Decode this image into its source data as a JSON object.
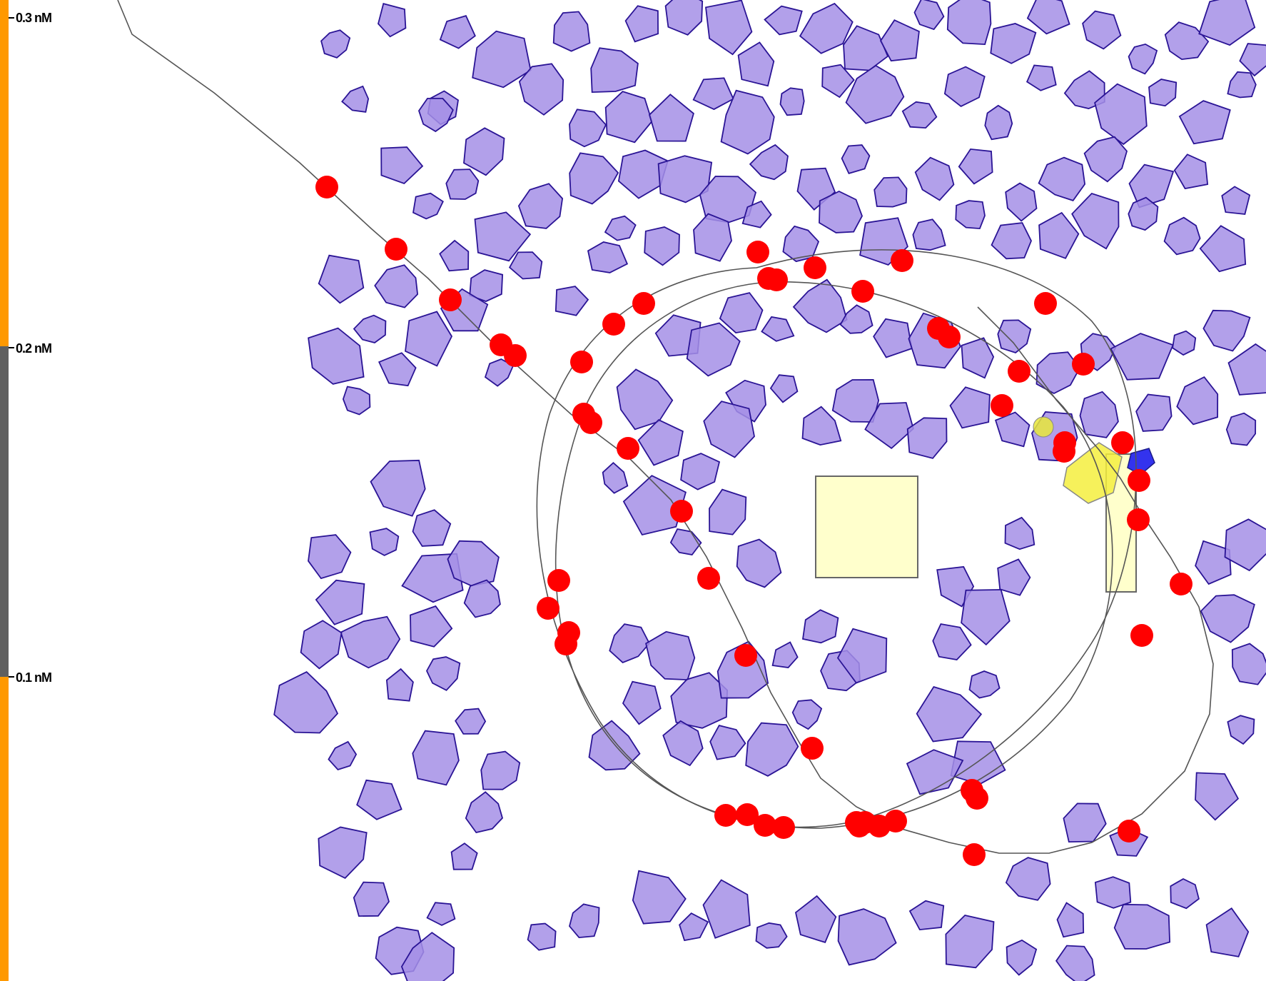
{
  "scale_bar": {
    "labels": [
      "0.3 nM",
      "0.2 nM",
      "0.1 nM"
    ],
    "colors": {
      "orange": "#ff9900",
      "gray": "#5f5f5f"
    }
  },
  "colors": {
    "obstacle_fill": "#a48fe6",
    "obstacle_stroke": "#2a1495",
    "waypoint": "#ff0000",
    "route": "#555555",
    "highlight_yellow": "#f5ee3e",
    "pale_yellow_fill": "#ffffcc",
    "blue_marker": "#3333ee"
  }
}
